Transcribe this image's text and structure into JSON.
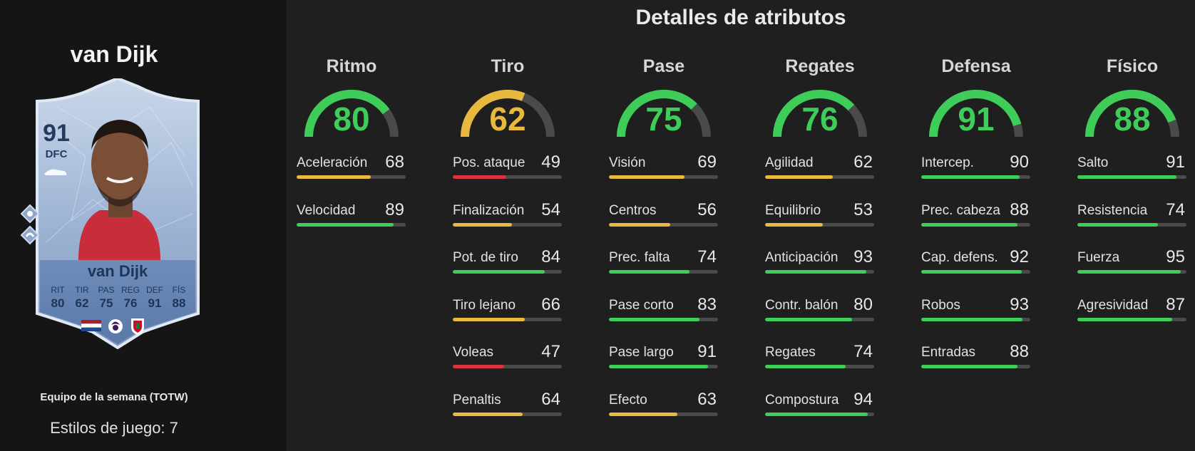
{
  "title": "Detalles de atributos",
  "player": {
    "name": "van Dijk",
    "rating": "91",
    "position": "DFC",
    "event": "Equipo de la semana (TOTW)",
    "playstyles": "Estilos de juego: 7",
    "face_stats": [
      {
        "label": "RIT",
        "value": "80"
      },
      {
        "label": "TIR",
        "value": "62"
      },
      {
        "label": "PAS",
        "value": "75"
      },
      {
        "label": "REG",
        "value": "76"
      },
      {
        "label": "DEF",
        "value": "91"
      },
      {
        "label": "FÍS",
        "value": "88"
      }
    ]
  },
  "colors": {
    "green": "#3fcd5a",
    "yellow": "#e8b83f",
    "red": "#d9333f",
    "track": "#4a4a4a"
  },
  "categories": [
    {
      "name": "Ritmo",
      "value": "80",
      "attributes": [
        {
          "name": "Aceleración",
          "value": "68"
        },
        {
          "name": "Velocidad",
          "value": "89"
        }
      ]
    },
    {
      "name": "Tiro",
      "value": "62",
      "attributes": [
        {
          "name": "Pos. ataque",
          "value": "49"
        },
        {
          "name": "Finalización",
          "value": "54"
        },
        {
          "name": "Pot. de tiro",
          "value": "84"
        },
        {
          "name": "Tiro lejano",
          "value": "66"
        },
        {
          "name": "Voleas",
          "value": "47"
        },
        {
          "name": "Penaltis",
          "value": "64"
        }
      ]
    },
    {
      "name": "Pase",
      "value": "75",
      "attributes": [
        {
          "name": "Visión",
          "value": "69"
        },
        {
          "name": "Centros",
          "value": "56"
        },
        {
          "name": "Prec. falta",
          "value": "74"
        },
        {
          "name": "Pase corto",
          "value": "83"
        },
        {
          "name": "Pase largo",
          "value": "91"
        },
        {
          "name": "Efecto",
          "value": "63"
        }
      ]
    },
    {
      "name": "Regates",
      "value": "76",
      "attributes": [
        {
          "name": "Agilidad",
          "value": "62"
        },
        {
          "name": "Equilibrio",
          "value": "53"
        },
        {
          "name": "Anticipación",
          "value": "93"
        },
        {
          "name": "Contr. balón",
          "value": "80"
        },
        {
          "name": "Regates",
          "value": "74"
        },
        {
          "name": "Compostura",
          "value": "94"
        }
      ]
    },
    {
      "name": "Defensa",
      "value": "91",
      "attributes": [
        {
          "name": "Intercep.",
          "value": "90"
        },
        {
          "name": "Prec. cabeza",
          "value": "88"
        },
        {
          "name": "Cap. defens.",
          "value": "92"
        },
        {
          "name": "Robos",
          "value": "93"
        },
        {
          "name": "Entradas",
          "value": "88"
        }
      ]
    },
    {
      "name": "Físico",
      "value": "88",
      "attributes": [
        {
          "name": "Salto",
          "value": "91"
        },
        {
          "name": "Resistencia",
          "value": "74"
        },
        {
          "name": "Fuerza",
          "value": "95"
        },
        {
          "name": "Agresividad",
          "value": "87"
        }
      ]
    }
  ]
}
